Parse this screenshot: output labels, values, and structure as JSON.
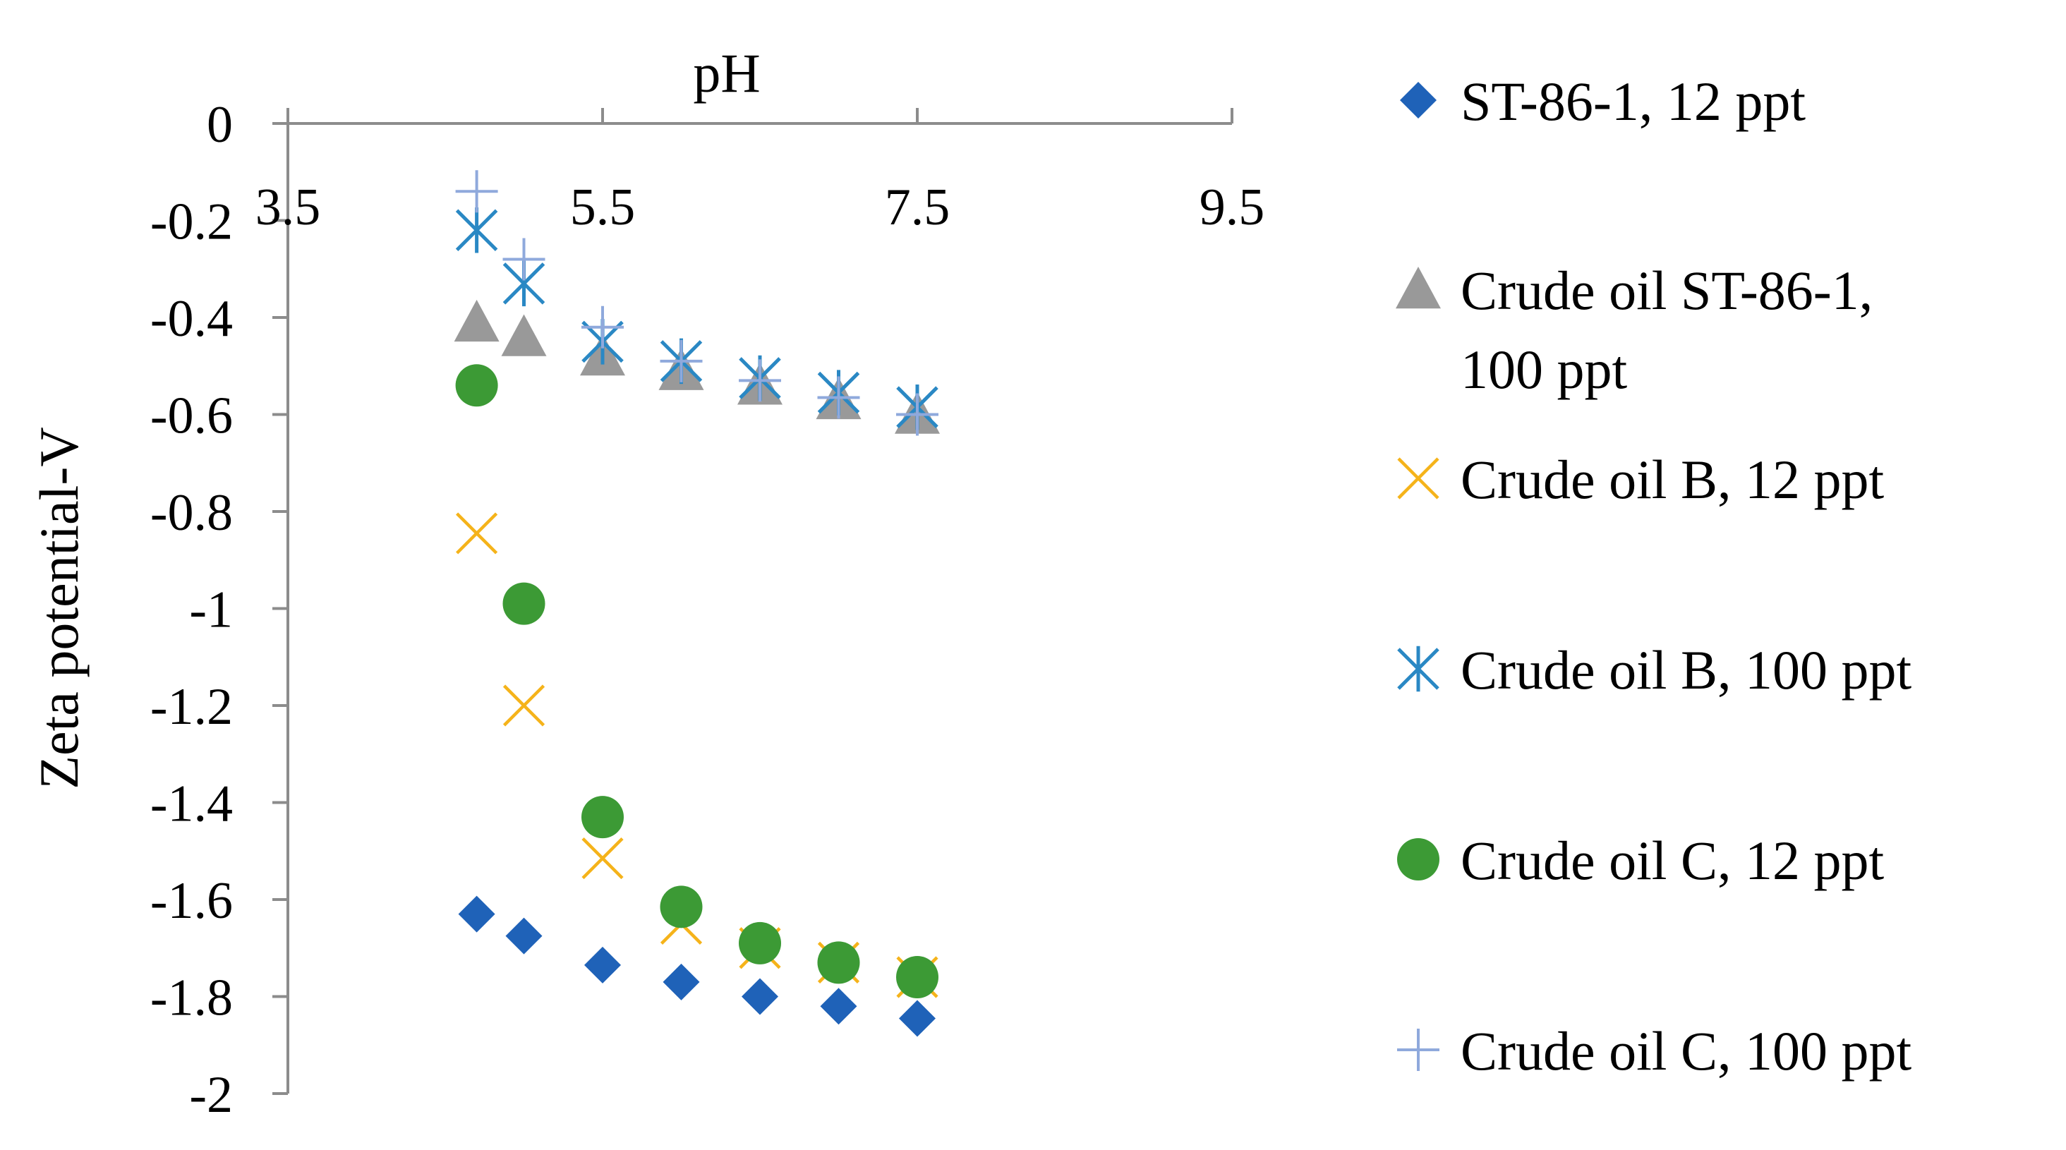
{
  "chart_data": {
    "type": "scatter",
    "title": "",
    "xlabel": "pH",
    "ylabel": "Zeta potential-V",
    "xlim": [
      3.5,
      9.5
    ],
    "ylim": [
      -2,
      0
    ],
    "x_ticks": [
      3.5,
      5.5,
      7.5,
      9.5
    ],
    "x_tick_labels": [
      "3.5",
      "5.5",
      "7.5",
      "9.5"
    ],
    "y_ticks": [
      0,
      -0.2,
      -0.4,
      -0.6,
      -0.8,
      -1,
      -1.2,
      -1.4,
      -1.6,
      -1.8,
      -2
    ],
    "y_tick_labels": [
      "0",
      "-0.2",
      "-0.4",
      "-0.6",
      "-0.8",
      "-1",
      "-1.2",
      "-1.4",
      "-1.6",
      "-1.8",
      "-2"
    ],
    "x_axis_position": "top",
    "grid": false,
    "legend_position": "right",
    "series": [
      {
        "name": "ST-86-1, 12 ppt",
        "marker": "diamond",
        "color": "#1f62b8",
        "x": [
          4.7,
          5.0,
          5.5,
          6.0,
          6.5,
          7.0,
          7.5
        ],
        "y": [
          -1.63,
          -1.675,
          -1.735,
          -1.77,
          -1.8,
          -1.82,
          -1.845
        ]
      },
      {
        "name": "Crude oil ST-86-1, 100 ppt",
        "legend_lines": [
          "Crude oil ST-86-1,",
          "100 ppt"
        ],
        "marker": "triangle",
        "color": "#999999",
        "x": [
          4.7,
          5.0,
          5.5,
          6.0,
          6.5,
          7.0,
          7.5
        ],
        "y": [
          -0.41,
          -0.44,
          -0.48,
          -0.51,
          -0.54,
          -0.57,
          -0.6
        ]
      },
      {
        "name": "Crude oil B, 12 ppt",
        "marker": "x",
        "color": "#f5b31a",
        "x": [
          4.7,
          5.0,
          5.5,
          6.0,
          6.5,
          7.0,
          7.5
        ],
        "y": [
          -0.845,
          -1.2,
          -1.515,
          -1.65,
          -1.7,
          -1.73,
          -1.76
        ]
      },
      {
        "name": "Crude oil B, 100 ppt",
        "marker": "asterisk",
        "color": "#2a88c4",
        "x": [
          4.7,
          5.0,
          5.5,
          6.0,
          6.5,
          7.0,
          7.5
        ],
        "y": [
          -0.22,
          -0.33,
          -0.45,
          -0.49,
          -0.525,
          -0.555,
          -0.585
        ]
      },
      {
        "name": "Crude oil C, 12 ppt",
        "marker": "circle",
        "color": "#3c9a35",
        "x": [
          4.7,
          5.0,
          5.5,
          6.0,
          6.5,
          7.0,
          7.5
        ],
        "y": [
          -0.54,
          -0.99,
          -1.43,
          -1.615,
          -1.69,
          -1.73,
          -1.76
        ]
      },
      {
        "name": "Crude oil C, 100 ppt",
        "marker": "plus",
        "color": "#8fa9dc",
        "x": [
          4.7,
          5.0,
          5.5,
          6.0,
          6.5,
          7.0,
          7.5
        ],
        "y": [
          -0.14,
          -0.28,
          -0.42,
          -0.49,
          -0.53,
          -0.565,
          -0.6
        ]
      }
    ]
  }
}
